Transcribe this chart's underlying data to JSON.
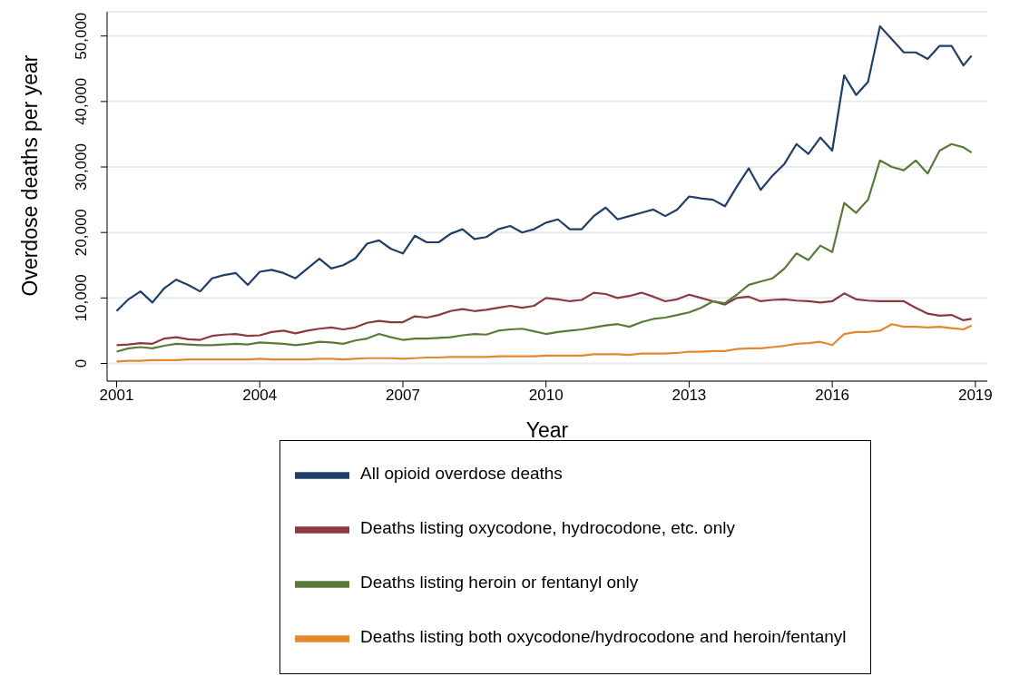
{
  "chart_data": {
    "type": "line",
    "xlabel": "Year",
    "ylabel": "Overdose deaths per year",
    "x": [
      2001,
      2001.25,
      2001.5,
      2001.75,
      2002,
      2002.25,
      2002.5,
      2002.75,
      2003,
      2003.25,
      2003.5,
      2003.75,
      2004,
      2004.25,
      2004.5,
      2004.75,
      2005,
      2005.25,
      2005.5,
      2005.75,
      2006,
      2006.25,
      2006.5,
      2006.75,
      2007,
      2007.25,
      2007.5,
      2007.75,
      2008,
      2008.25,
      2008.5,
      2008.75,
      2009,
      2009.25,
      2009.5,
      2009.75,
      2010,
      2010.25,
      2010.5,
      2010.75,
      2011,
      2011.25,
      2011.5,
      2011.75,
      2012,
      2012.25,
      2012.5,
      2012.75,
      2013,
      2013.25,
      2013.5,
      2013.75,
      2014,
      2014.25,
      2014.5,
      2014.75,
      2015,
      2015.25,
      2015.5,
      2015.75,
      2016,
      2016.25,
      2016.5,
      2016.75,
      2017,
      2017.25,
      2017.5,
      2017.75,
      2018,
      2018.25,
      2018.5,
      2018.75,
      2018.92
    ],
    "series": [
      {
        "name": "All opioid overdose deaths",
        "color": "#1f3f66",
        "values": [
          8000,
          9800,
          11000,
          9300,
          11500,
          12800,
          12000,
          11000,
          13000,
          13500,
          13800,
          12000,
          14000,
          14300,
          13800,
          13000,
          14500,
          16000,
          14500,
          15000,
          16000,
          18300,
          18800,
          17500,
          16800,
          19500,
          18500,
          18500,
          19800,
          20500,
          19000,
          19300,
          20500,
          21000,
          20000,
          20500,
          21500,
          22000,
          20500,
          20500,
          22500,
          23800,
          22000,
          22500,
          23000,
          23500,
          22500,
          23500,
          25500,
          25200,
          25000,
          24000,
          27000,
          29800,
          26500,
          28700,
          30500,
          33500,
          32000,
          34500,
          32500,
          44000,
          41000,
          43000,
          51500,
          49500,
          47500,
          47500,
          46500,
          48500,
          48500,
          45500,
          47000
        ]
      },
      {
        "name": "Deaths listing oxycodone, hydrocodone, etc. only",
        "color": "#8c3a3f",
        "values": [
          2800,
          2900,
          3100,
          3000,
          3800,
          4000,
          3700,
          3600,
          4200,
          4400,
          4500,
          4200,
          4300,
          4800,
          5000,
          4600,
          5000,
          5300,
          5500,
          5200,
          5500,
          6200,
          6500,
          6300,
          6300,
          7200,
          7000,
          7400,
          8000,
          8300,
          8000,
          8200,
          8500,
          8800,
          8500,
          8800,
          10000,
          9800,
          9500,
          9700,
          10800,
          10600,
          10000,
          10300,
          10800,
          10200,
          9500,
          9800,
          10500,
          10000,
          9500,
          9000,
          10000,
          10200,
          9500,
          9700,
          9800,
          9600,
          9500,
          9300,
          9500,
          10700,
          9800,
          9600,
          9500,
          9500,
          9500,
          8500,
          7600,
          7300,
          7400,
          6600,
          6800
        ]
      },
      {
        "name": "Deaths listing heroin or fentanyl only",
        "color": "#5a7a3a",
        "values": [
          1800,
          2300,
          2500,
          2300,
          2700,
          3000,
          2900,
          2800,
          2800,
          2900,
          3000,
          2900,
          3200,
          3100,
          3000,
          2800,
          3000,
          3300,
          3200,
          3000,
          3500,
          3800,
          4500,
          4000,
          3600,
          3800,
          3800,
          3900,
          4000,
          4300,
          4500,
          4400,
          5000,
          5200,
          5300,
          4900,
          4500,
          4800,
          5000,
          5200,
          5500,
          5800,
          6000,
          5600,
          6300,
          6800,
          7000,
          7400,
          7800,
          8500,
          9500,
          9200,
          10500,
          12000,
          12500,
          13000,
          14500,
          16800,
          15800,
          18000,
          17000,
          24500,
          23000,
          25000,
          31000,
          30000,
          29500,
          31000,
          29000,
          32500,
          33500,
          33000,
          32200
        ]
      },
      {
        "name": "Deaths listing both oxycodone/hydrocodone and heroin/fentanyl",
        "color": "#e0892f",
        "values": [
          300,
          400,
          400,
          500,
          500,
          500,
          600,
          600,
          600,
          600,
          600,
          600,
          700,
          600,
          600,
          600,
          600,
          700,
          700,
          600,
          700,
          800,
          800,
          800,
          700,
          800,
          900,
          900,
          1000,
          1000,
          1000,
          1000,
          1100,
          1100,
          1100,
          1100,
          1200,
          1200,
          1200,
          1200,
          1400,
          1400,
          1400,
          1300,
          1500,
          1500,
          1500,
          1600,
          1800,
          1800,
          1900,
          1900,
          2200,
          2300,
          2300,
          2500,
          2700,
          3000,
          3100,
          3300,
          2800,
          4500,
          4800,
          4800,
          5000,
          6000,
          5600,
          5600,
          5500,
          5600,
          5400,
          5200,
          5800
        ]
      }
    ],
    "xlim": [
      2000.8,
      2019.25
    ],
    "xticks": [
      2001,
      2004,
      2007,
      2010,
      2013,
      2016,
      2019
    ],
    "ylim": [
      -2700,
      53700
    ],
    "yticks": [
      0,
      {
        "value": 10000,
        "label": "10,000"
      },
      {
        "value": 20000,
        "label": "20,000"
      },
      {
        "value": 30000,
        "label": "30,000"
      },
      {
        "value": 40000,
        "label": "40,000"
      },
      {
        "value": 50000,
        "label": "50,000"
      }
    ],
    "grid": "y",
    "legend": "bottom",
    "marker": "none",
    "line_style": "solid"
  }
}
